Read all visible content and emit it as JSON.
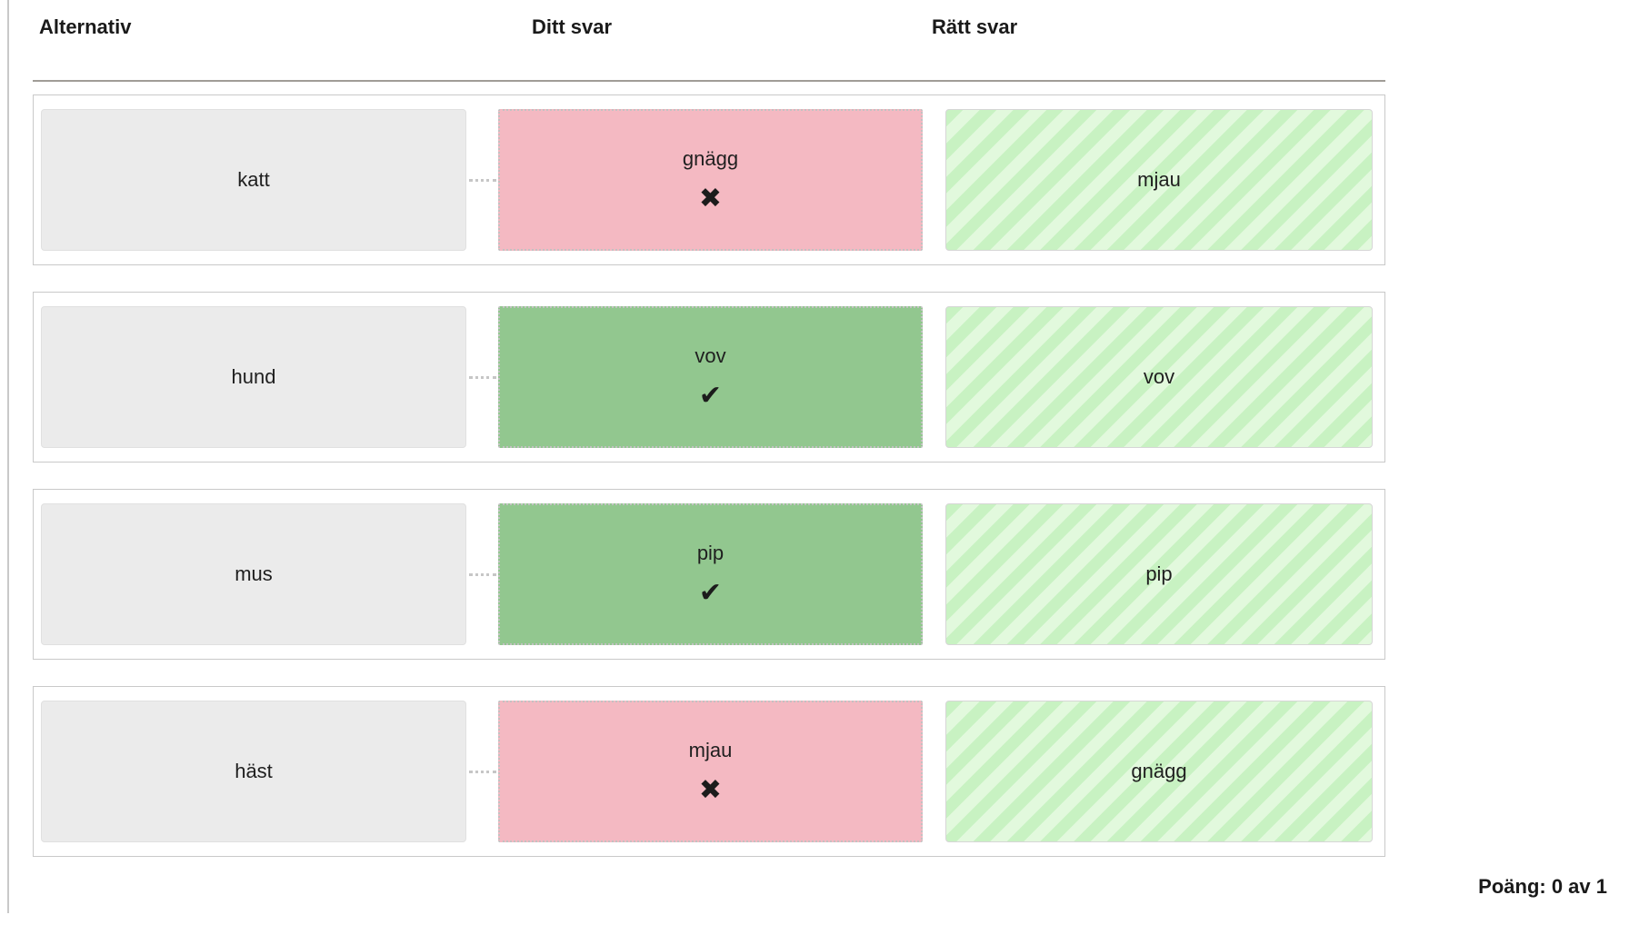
{
  "table": {
    "headers": {
      "alternative": "Alternativ",
      "your_answer": "Ditt svar",
      "correct_answer": "Rätt svar"
    },
    "rows": [
      {
        "alternative": "katt",
        "your_answer": "gnägg",
        "correct": false,
        "correct_answer": "mjau"
      },
      {
        "alternative": "hund",
        "your_answer": "vov",
        "correct": true,
        "correct_answer": "vov"
      },
      {
        "alternative": "mus",
        "your_answer": "pip",
        "correct": true,
        "correct_answer": "pip"
      },
      {
        "alternative": "häst",
        "your_answer": "mjau",
        "correct": false,
        "correct_answer": "gnägg"
      }
    ]
  },
  "icons": {
    "check": "✔",
    "cross": "✖"
  },
  "score": {
    "label": "Poäng: 0 av 1"
  },
  "colors": {
    "correct_bg": "#92c78f",
    "wrong_bg": "#f4b9c2",
    "stripe_dark": "#c8f2c2",
    "stripe_light": "#e2f9dd",
    "neutral_bg": "#ebebeb"
  }
}
